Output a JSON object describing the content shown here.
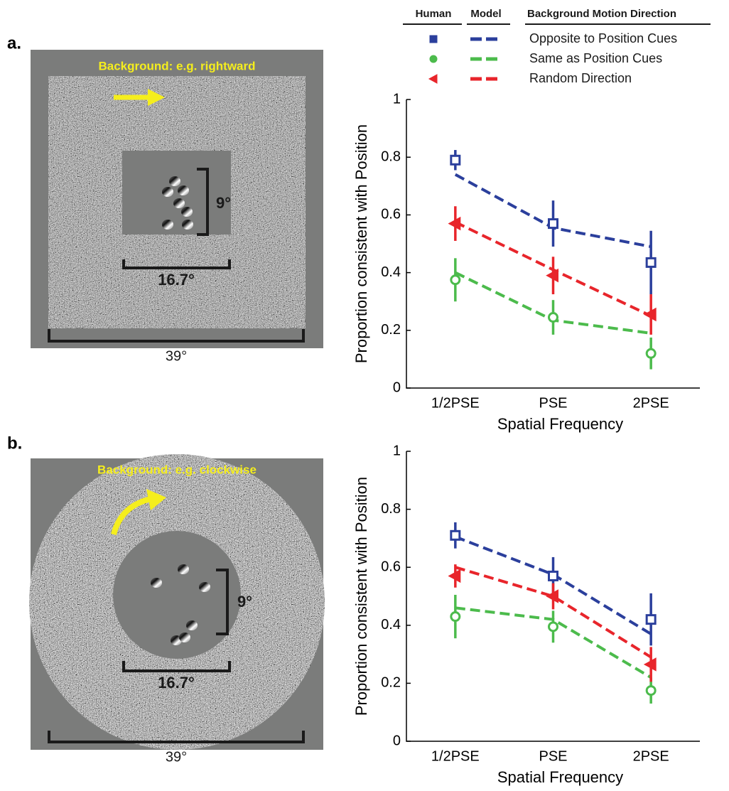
{
  "legend_headers": [
    "Human",
    "Model",
    "Background Motion Direction"
  ],
  "panels": [
    {
      "label": "a.",
      "caption": "Background: e.g. rightward",
      "inner_size": "9°",
      "middle_size": "16.7°",
      "outer_size": "39°"
    },
    {
      "label": "b.",
      "caption": "Background: e.g. clockwise",
      "inner_size": "9°",
      "middle_size": "16.7°",
      "outer_size": "39°"
    }
  ],
  "chart_data": [
    {
      "type": "line",
      "categories": [
        "1/2PSE",
        "PSE",
        "2PSE"
      ],
      "x_label": "Spatial Frequency",
      "y_label": "Proportion consistent with Position",
      "ylim": [
        0,
        1
      ],
      "yticks": [
        0,
        0.2,
        0.4,
        0.6,
        0.8,
        1
      ],
      "series": [
        {
          "name": "Opposite to Position Cues",
          "color": "#2b3f9c",
          "marker": "square",
          "values": [
            0.79,
            0.57,
            0.435
          ],
          "errors": [
            0.035,
            0.08,
            0.11
          ],
          "model_values": [
            0.74,
            0.555,
            0.49
          ]
        },
        {
          "name": "Same as Position Cues",
          "color": "#4cbb4c",
          "marker": "circle",
          "values": [
            0.375,
            0.245,
            0.12
          ],
          "errors": [
            0.075,
            0.06,
            0.055
          ],
          "model_values": [
            0.4,
            0.235,
            0.19
          ]
        },
        {
          "name": "Random Direction",
          "color": "#e8252b",
          "marker": "triangle-left",
          "values": [
            0.57,
            0.39,
            0.255
          ],
          "errors": [
            0.06,
            0.065,
            0.07
          ],
          "model_values": [
            0.575,
            0.41,
            0.25
          ]
        }
      ]
    },
    {
      "type": "line",
      "categories": [
        "1/2PSE",
        "PSE",
        "2PSE"
      ],
      "x_label": "Spatial Frequency",
      "y_label": "Proportion consistent with Position",
      "ylim": [
        0,
        1
      ],
      "yticks": [
        0,
        0.2,
        0.4,
        0.6,
        0.8,
        1
      ],
      "series": [
        {
          "color": "#2b3f9c",
          "marker": "square",
          "values": [
            0.71,
            0.57,
            0.42
          ],
          "errors": [
            0.045,
            0.065,
            0.09
          ],
          "model_values": [
            0.705,
            0.575,
            0.37
          ]
        },
        {
          "color": "#4cbb4c",
          "marker": "circle",
          "values": [
            0.43,
            0.395,
            0.175
          ],
          "errors": [
            0.075,
            0.055,
            0.045
          ],
          "model_values": [
            0.46,
            0.42,
            0.22
          ]
        },
        {
          "color": "#e8252b",
          "marker": "triangle-left",
          "values": [
            0.57,
            0.5,
            0.265
          ],
          "errors": [
            0.04,
            0.045,
            0.06
          ],
          "model_values": [
            0.6,
            0.5,
            0.29
          ]
        }
      ]
    }
  ]
}
